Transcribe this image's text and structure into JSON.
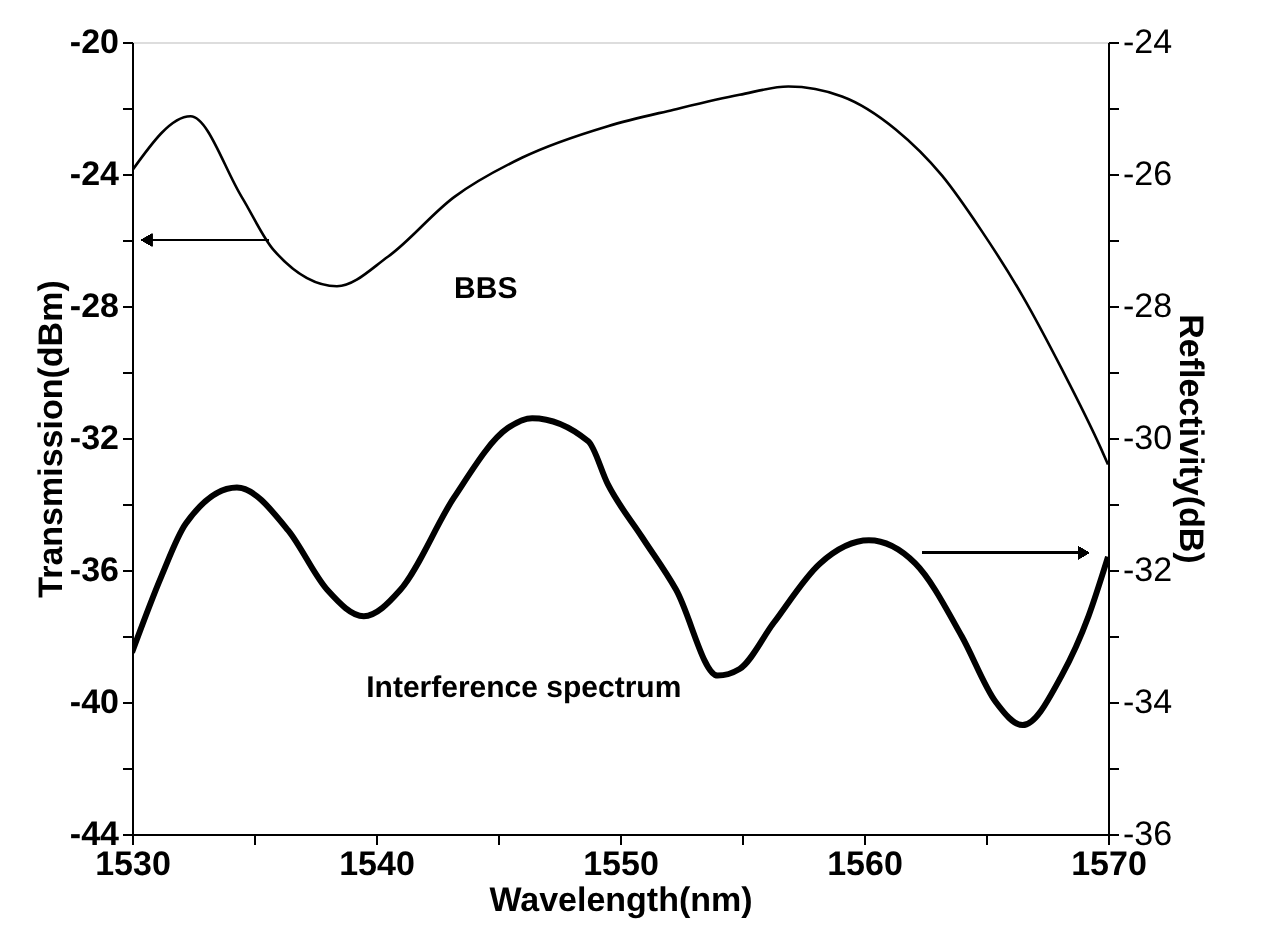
{
  "chart_data": {
    "type": "line",
    "xlabel": "Wavelength(nm)",
    "ylabel": "Transmission(dBm)",
    "y2label": "Reflectivity(dB)",
    "xlim": [
      1530,
      1570
    ],
    "xticks": [
      1530,
      {
        "value": 1535,
        "label": null
      },
      1540,
      {
        "value": 1545,
        "label": null
      },
      1550,
      {
        "value": 1555,
        "label": null
      },
      1560,
      {
        "value": 1565,
        "label": null
      },
      1570
    ],
    "ylim": [
      -44,
      -20
    ],
    "yticks": [
      -44,
      {
        "value": -42,
        "label": null
      },
      -40,
      {
        "value": -38,
        "label": null
      },
      -36,
      {
        "value": -34,
        "label": null
      },
      -32,
      {
        "value": -30,
        "label": null
      },
      -28,
      {
        "value": -26,
        "label": null
      },
      -24,
      {
        "value": -22,
        "label": null
      },
      -20
    ],
    "y2lim": [
      -36,
      -24
    ],
    "y2ticks": [
      -36,
      {
        "value": -35,
        "label": null
      },
      -34,
      {
        "value": -33,
        "label": null
      },
      -32,
      {
        "value": -31,
        "label": null
      },
      -30,
      {
        "value": -29,
        "label": null
      },
      -28,
      {
        "value": -27,
        "label": null
      },
      -26,
      {
        "value": -25,
        "label": null
      },
      -24
    ],
    "grid": false,
    "marker": "none",
    "line_style": "solid",
    "series": [
      {
        "name": "BBS",
        "color": "#000000",
        "x": [
          1530,
          1532.4,
          1534.5,
          1535.8,
          1538.4,
          1540.5,
          1543.2,
          1546.0,
          1549.5,
          1552.2,
          1554.9,
          1556.9,
          1559.1,
          1561.3,
          1563.2,
          1564.8,
          1566.5,
          1568.1,
          1569.7,
          1570
        ],
        "values": [
          -23.9,
          -22.25,
          -24.7,
          -26.3,
          -27.4,
          -26.5,
          -24.7,
          -23.5,
          -22.55,
          -22.05,
          -21.6,
          -21.35,
          -21.65,
          -22.65,
          -24.05,
          -25.7,
          -27.7,
          -29.9,
          -32.3,
          -32.8
        ]
      },
      {
        "name": "Interference spectrum",
        "color": "#000000",
        "axis": "y2",
        "x": [
          1530,
          1531.2,
          1532.2,
          1534.3,
          1536.4,
          1538.0,
          1539.5,
          1541.0,
          1543.2,
          1545.4,
          1546.4,
          1548.7,
          1549.5,
          1550.9,
          1552.3,
          1554.0,
          1554.9,
          1556.3,
          1558.2,
          1560.2,
          1562.1,
          1564.0,
          1565.4,
          1566.5,
          1568.1,
          1569.2,
          1570
        ],
        "values": [
          -33.25,
          -32.1,
          -31.3,
          -30.75,
          -31.4,
          -32.3,
          -32.7,
          -32.3,
          -30.9,
          -29.85,
          -29.7,
          -30.05,
          -30.7,
          -31.5,
          -32.3,
          -33.6,
          -33.5,
          -32.8,
          -31.9,
          -31.55,
          -31.9,
          -33.0,
          -34.0,
          -34.35,
          -33.6,
          -32.7,
          -31.8
        ]
      }
    ]
  }
}
